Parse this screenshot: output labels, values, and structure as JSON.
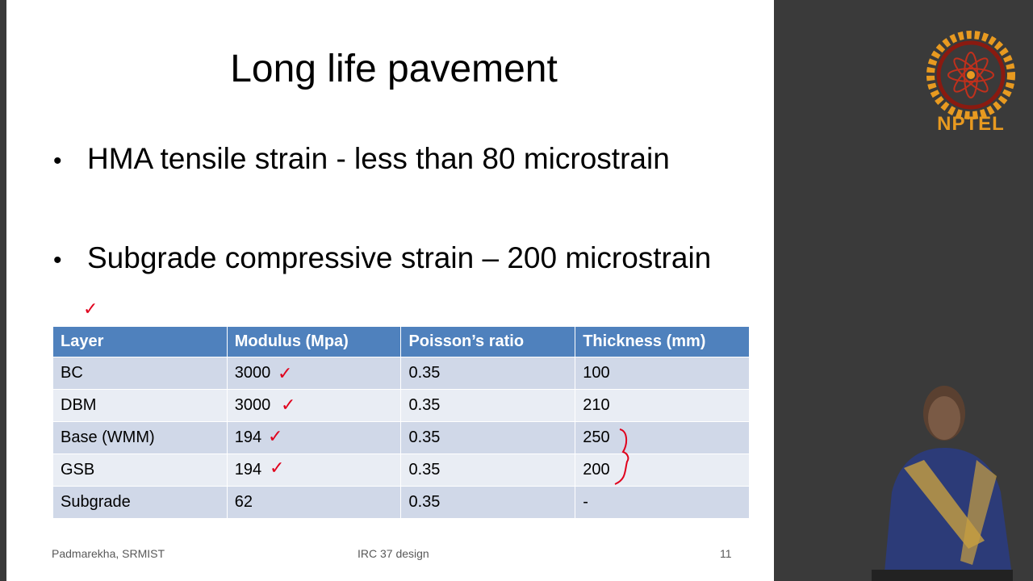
{
  "slide": {
    "title": "Long life pavement",
    "bullets": [
      "HMA tensile strain - less than 80 microstrain",
      "Subgrade compressive strain – 200 microstrain"
    ]
  },
  "table": {
    "headers": [
      "Layer",
      "Modulus (Mpa)",
      "Poisson’s ratio",
      "Thickness (mm)"
    ],
    "rows": [
      [
        "BC",
        "3000",
        "0.35",
        "100"
      ],
      [
        "DBM",
        "3000",
        "0.35",
        "210"
      ],
      [
        "Base (WMM)",
        "194",
        "0.35",
        "250"
      ],
      [
        "GSB",
        "194",
        "0.35",
        "200"
      ],
      [
        "Subgrade",
        "62",
        "0.35",
        "-"
      ]
    ]
  },
  "footer": {
    "author": "Padmarekha, SRMIST",
    "center": "IRC 37 design",
    "page": "11"
  },
  "branding": {
    "logo_text": "NPTEL",
    "logo_color": "#e89a20"
  },
  "colors": {
    "header_bg": "#4f81bd",
    "row_odd": "#d0d8e8",
    "row_even": "#e9edf4",
    "annotation": "#e0001c"
  },
  "icons": [
    "bullet-dot",
    "checkmark-annotation",
    "brace-annotation",
    "nptel-logo",
    "presenter-video"
  ]
}
